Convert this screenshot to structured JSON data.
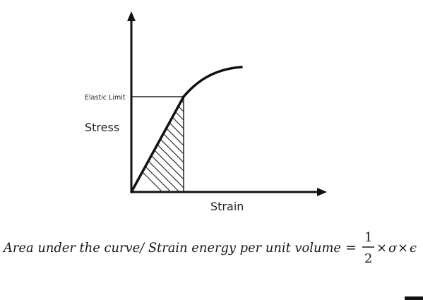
{
  "diagram": {
    "elastic_limit_label": "Elastic Limit",
    "y_axis_label": "Stress",
    "x_axis_label": "Strain"
  },
  "formula": {
    "lhs": "Area under the curve/ Strain energy per unit volume",
    "equals": "=",
    "numerator": "1",
    "denominator": "2",
    "times1": "×",
    "sigma": "σ",
    "times2": "×",
    "epsilon": "ϵ"
  }
}
